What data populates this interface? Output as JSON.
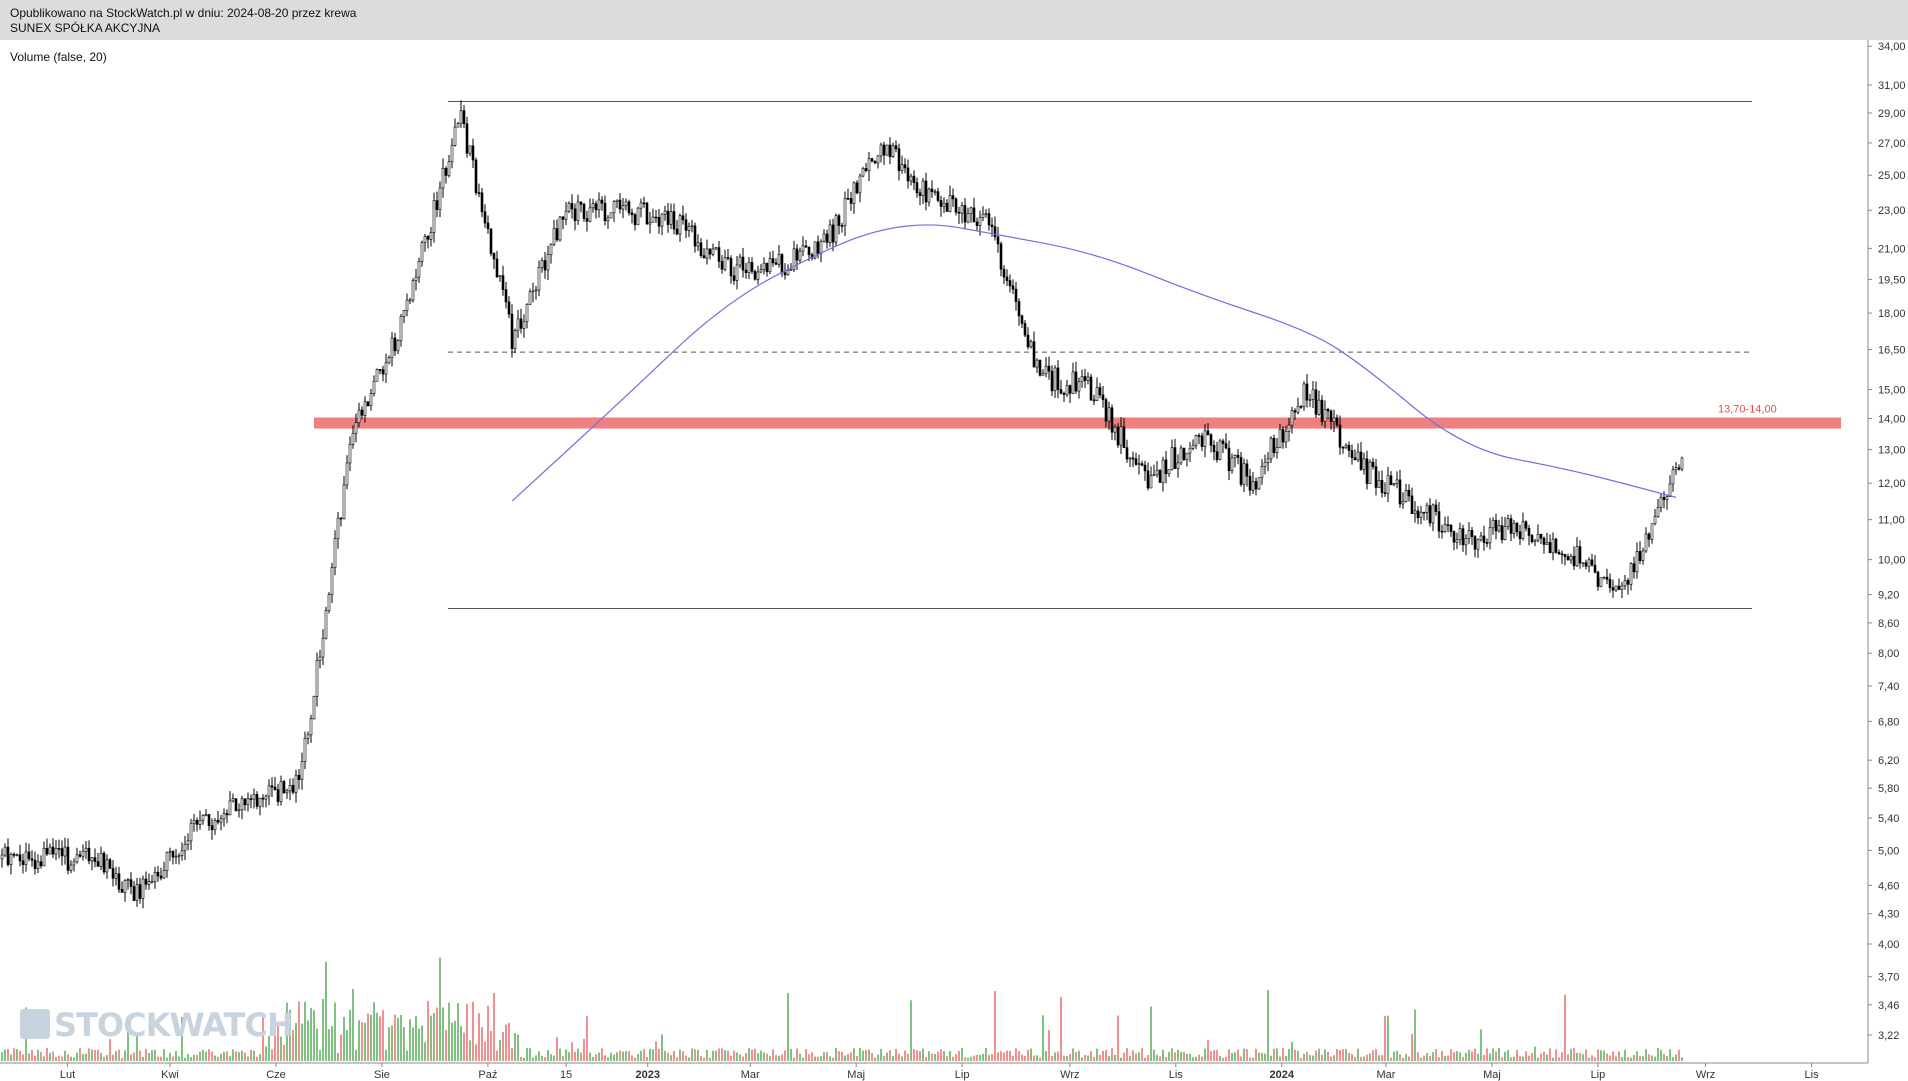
{
  "header": {
    "published": "Opublikowano na StockWatch.pl w dniu: 2024-08-20 przez krewa",
    "company": "SUNEX SPÓŁKA AKCYJNA"
  },
  "indicator_label": "Volume (false, 20)",
  "logo_text": "STOCKWATCH",
  "colors": {
    "candle": "#000000",
    "moving_average": "#7070e0",
    "support_zone": "#f08080",
    "zone_label": "#e05050",
    "volume_up": "#80c080",
    "volume_down": "#f09090",
    "level_line": "#555555"
  },
  "chart_data": {
    "type": "line",
    "title": "",
    "xlabel": "",
    "ylabel": "",
    "y_scale": "log",
    "ylim": [
      3.0,
      35.0
    ],
    "x_tick_labels": [
      "Lut",
      "Kwi",
      "Cze",
      "Sie",
      "Paź",
      "15",
      "2023",
      "Mar",
      "Maj",
      "Lip",
      "Wrz",
      "Lis",
      "2024",
      "Mar",
      "Maj",
      "Lip",
      "Wrz",
      "Lis"
    ],
    "y_tick_labels": [
      "34,00",
      "31,00",
      "29,00",
      "27,00",
      "25,00",
      "23,00",
      "21,00",
      "19,50",
      "18,00",
      "16,50",
      "15,00",
      "14,00",
      "13,00",
      "12,00",
      "11,00",
      "10,00",
      "9,20",
      "8,60",
      "8,00",
      "7,40",
      "6,80",
      "6,20",
      "5,80",
      "5,40",
      "5,00",
      "4,60",
      "4,30",
      "4,00",
      "3,70",
      "3,46",
      "3,22"
    ],
    "annotations": [
      {
        "type": "zone",
        "low": 13.7,
        "high": 14.0,
        "label": "13,70-14,00"
      },
      {
        "type": "hline",
        "value": 29.8,
        "style": "solid"
      },
      {
        "type": "hline",
        "value": 16.4,
        "style": "dashed"
      },
      {
        "type": "hline",
        "value": 8.9,
        "style": "solid"
      }
    ],
    "series": [
      {
        "kind": "price",
        "x": [
          "2022-02",
          "2022-03",
          "2022-04",
          "2022-05",
          "2022-06",
          "2022-07",
          "2022-08",
          "2022-09",
          "2022-10",
          "2022-11",
          "2022-12",
          "2023-01",
          "2023-02",
          "2023-03",
          "2023-04",
          "2023-05",
          "2023-06",
          "2023-07",
          "2023-08",
          "2023-09",
          "2023-10",
          "2023-11",
          "2023-12",
          "2024-01",
          "2024-02",
          "2024-03",
          "2024-04",
          "2024-05",
          "2024-06",
          "2024-07",
          "2024-08"
        ],
        "values": [
          4.9,
          4.5,
          5.3,
          5.6,
          5.9,
          13.5,
          18.0,
          29.0,
          17.0,
          23.0,
          23.0,
          22.5,
          20.0,
          20.0,
          21.5,
          27.0,
          23.5,
          22.5,
          15.5,
          15.0,
          12.0,
          13.5,
          12.0,
          15.0,
          12.5,
          11.5,
          10.5,
          10.8,
          10.2,
          9.2,
          12.5
        ]
      },
      {
        "kind": "moving_average",
        "x": [
          "2022-10",
          "2022-12",
          "2023-02",
          "2023-04",
          "2023-05",
          "2023-06",
          "2023-07",
          "2023-09",
          "2023-11",
          "2024-01",
          "2024-02",
          "2024-04",
          "2024-06",
          "2024-08"
        ],
        "values": [
          11.5,
          14.5,
          18.5,
          21.0,
          22.0,
          22.3,
          21.8,
          20.8,
          18.8,
          17.3,
          16.0,
          13.0,
          12.4,
          11.6
        ]
      }
    ]
  }
}
